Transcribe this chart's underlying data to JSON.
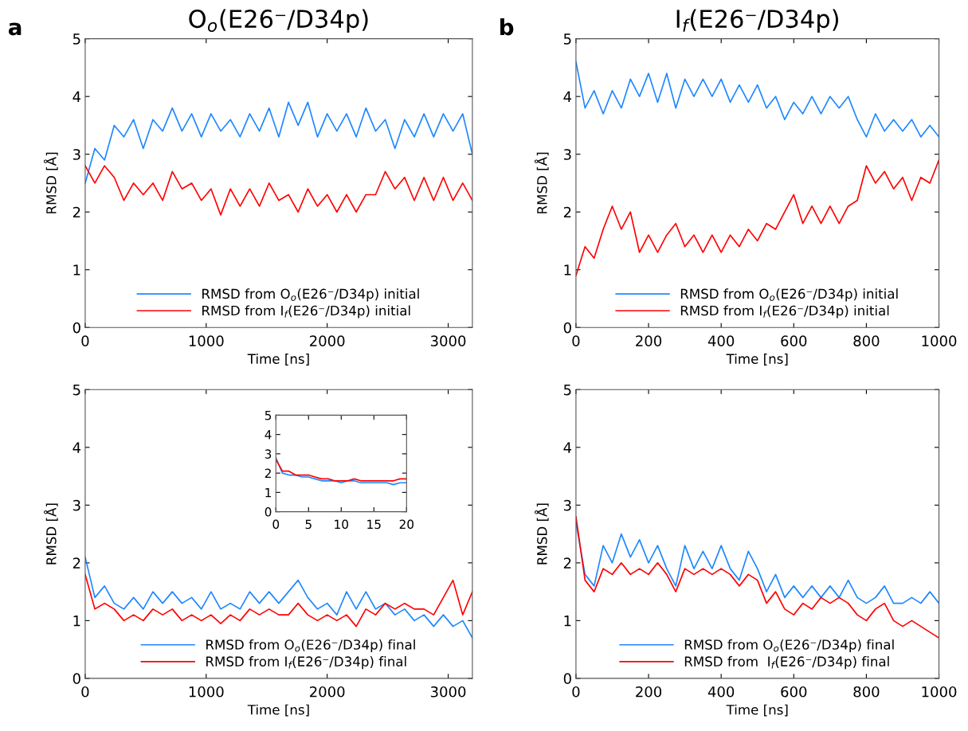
{
  "chart_data": [
    {
      "type": "line",
      "title": "O$_{o}$(E26⁻/D34p)",
      "xlabel": "Time [ns]",
      "ylabel": "RMSD [Å]",
      "annotations": [
        "a"
      ],
      "xlim": [
        0,
        3200
      ],
      "xticks": [
        0,
        1000,
        2000,
        3000
      ],
      "ylim": [
        0,
        5
      ],
      "yticks": [
        0,
        1,
        2,
        3,
        4,
        5
      ],
      "legend": "bottom",
      "grid": false,
      "x": [
        0,
        80,
        160,
        240,
        320,
        400,
        480,
        560,
        640,
        720,
        800,
        880,
        960,
        1040,
        1120,
        1200,
        1280,
        1360,
        1440,
        1520,
        1600,
        1680,
        1760,
        1840,
        1920,
        2000,
        2080,
        2160,
        2240,
        2320,
        2400,
        2480,
        2560,
        2640,
        2720,
        2800,
        2880,
        2960,
        3040,
        3120,
        3200
      ],
      "series": [
        {
          "name": "RMSD from O$_{o}$(E26⁻/D34p) initial",
          "color": "#1e88ff",
          "values": [
            2.5,
            3.1,
            2.9,
            3.5,
            3.3,
            3.6,
            3.1,
            3.6,
            3.4,
            3.8,
            3.4,
            3.7,
            3.3,
            3.7,
            3.4,
            3.6,
            3.3,
            3.7,
            3.4,
            3.8,
            3.3,
            3.9,
            3.5,
            3.9,
            3.3,
            3.7,
            3.4,
            3.7,
            3.3,
            3.8,
            3.4,
            3.6,
            3.1,
            3.6,
            3.3,
            3.7,
            3.3,
            3.7,
            3.4,
            3.7,
            3.0
          ]
        },
        {
          "name": "RMSD from I$_{f}$(E26⁻/D34p) initial",
          "color": "#ff0000",
          "values": [
            2.8,
            2.5,
            2.8,
            2.6,
            2.2,
            2.5,
            2.3,
            2.5,
            2.2,
            2.7,
            2.4,
            2.5,
            2.2,
            2.4,
            1.95,
            2.4,
            2.1,
            2.4,
            2.1,
            2.5,
            2.2,
            2.3,
            2.0,
            2.4,
            2.1,
            2.3,
            2.0,
            2.3,
            2.0,
            2.3,
            2.3,
            2.7,
            2.4,
            2.6,
            2.2,
            2.6,
            2.2,
            2.6,
            2.2,
            2.5,
            2.2
          ]
        }
      ]
    },
    {
      "type": "line",
      "title": "I$_{f}$(E26⁻/D34p)",
      "xlabel": "Time [ns]",
      "ylabel": "RMSD [Å]",
      "annotations": [
        "b"
      ],
      "xlim": [
        0,
        1000
      ],
      "xticks": [
        0,
        200,
        400,
        600,
        800,
        1000
      ],
      "ylim": [
        0,
        5
      ],
      "yticks": [
        0,
        1,
        2,
        3,
        4,
        5
      ],
      "legend": "bottom",
      "grid": false,
      "x": [
        0,
        25,
        50,
        75,
        100,
        125,
        150,
        175,
        200,
        225,
        250,
        275,
        300,
        325,
        350,
        375,
        400,
        425,
        450,
        475,
        500,
        525,
        550,
        575,
        600,
        625,
        650,
        675,
        700,
        725,
        750,
        775,
        800,
        825,
        850,
        875,
        900,
        925,
        950,
        975,
        1000
      ],
      "series": [
        {
          "name": "RMSD from O$_{o}$(E26⁻/D34p) initial",
          "color": "#1e88ff",
          "values": [
            4.6,
            3.8,
            4.1,
            3.7,
            4.1,
            3.8,
            4.3,
            4.0,
            4.4,
            3.9,
            4.4,
            3.8,
            4.3,
            4.0,
            4.3,
            4.0,
            4.3,
            3.9,
            4.2,
            3.9,
            4.2,
            3.8,
            4.0,
            3.6,
            3.9,
            3.7,
            4.0,
            3.7,
            4.0,
            3.8,
            4.0,
            3.6,
            3.3,
            3.7,
            3.4,
            3.6,
            3.4,
            3.6,
            3.3,
            3.5,
            3.3
          ]
        },
        {
          "name": "RMSD from I$_{f}$(E26⁻/D34p) initial",
          "color": "#ff0000",
          "values": [
            0.9,
            1.4,
            1.2,
            1.7,
            2.1,
            1.7,
            2.0,
            1.3,
            1.6,
            1.3,
            1.6,
            1.8,
            1.4,
            1.6,
            1.3,
            1.6,
            1.3,
            1.6,
            1.4,
            1.7,
            1.5,
            1.8,
            1.7,
            2.0,
            2.3,
            1.8,
            2.1,
            1.8,
            2.1,
            1.8,
            2.1,
            2.2,
            2.8,
            2.5,
            2.7,
            2.4,
            2.6,
            2.2,
            2.6,
            2.5,
            2.9
          ]
        }
      ]
    },
    {
      "type": "line",
      "xlabel": "Time [ns]",
      "ylabel": "RMSD [Å]",
      "xlim": [
        0,
        3200
      ],
      "xticks": [
        0,
        1000,
        2000,
        3000
      ],
      "ylim": [
        0,
        5
      ],
      "yticks": [
        0,
        1,
        2,
        3,
        4,
        5
      ],
      "legend": "bottom",
      "grid": false,
      "x": [
        0,
        80,
        160,
        240,
        320,
        400,
        480,
        560,
        640,
        720,
        800,
        880,
        960,
        1040,
        1120,
        1200,
        1280,
        1360,
        1440,
        1520,
        1600,
        1680,
        1760,
        1840,
        1920,
        2000,
        2080,
        2160,
        2240,
        2320,
        2400,
        2480,
        2560,
        2640,
        2720,
        2800,
        2880,
        2960,
        3040,
        3120,
        3200
      ],
      "series": [
        {
          "name": "RMSD from O$_{o}$(E26⁻/D34p) final",
          "color": "#1e88ff",
          "values": [
            2.1,
            1.4,
            1.6,
            1.3,
            1.2,
            1.4,
            1.2,
            1.5,
            1.3,
            1.5,
            1.3,
            1.4,
            1.2,
            1.5,
            1.2,
            1.3,
            1.2,
            1.5,
            1.3,
            1.5,
            1.3,
            1.5,
            1.7,
            1.4,
            1.2,
            1.3,
            1.1,
            1.5,
            1.2,
            1.5,
            1.2,
            1.3,
            1.1,
            1.2,
            1.0,
            1.1,
            0.9,
            1.1,
            0.9,
            1.0,
            0.7
          ]
        },
        {
          "name": "RMSD from I$_{f}$(E26⁻/D34p) final",
          "color": "#ff0000",
          "values": [
            1.8,
            1.2,
            1.3,
            1.2,
            1.0,
            1.1,
            1.0,
            1.2,
            1.1,
            1.2,
            1.0,
            1.1,
            1.0,
            1.1,
            0.95,
            1.1,
            1.0,
            1.2,
            1.1,
            1.2,
            1.1,
            1.1,
            1.3,
            1.1,
            1.0,
            1.1,
            1.0,
            1.1,
            0.9,
            1.2,
            1.1,
            1.3,
            1.2,
            1.3,
            1.2,
            1.2,
            1.1,
            1.4,
            1.7,
            1.1,
            1.5
          ]
        }
      ]
    },
    {
      "type": "line",
      "xlim": [
        0,
        20
      ],
      "xticks": [
        0,
        5,
        10,
        15,
        20
      ],
      "ylim": [
        0,
        5
      ],
      "yticks": [
        0,
        1,
        2,
        3,
        4,
        5
      ],
      "grid": false,
      "x": [
        0,
        1,
        2,
        3,
        4,
        5,
        6,
        7,
        8,
        9,
        10,
        11,
        12,
        13,
        14,
        15,
        16,
        17,
        18,
        19,
        20
      ],
      "series": [
        {
          "color": "#1e88ff",
          "values": [
            2.8,
            2.0,
            1.9,
            1.9,
            1.8,
            1.8,
            1.7,
            1.6,
            1.6,
            1.6,
            1.5,
            1.6,
            1.6,
            1.5,
            1.5,
            1.5,
            1.5,
            1.5,
            1.4,
            1.5,
            1.5
          ]
        },
        {
          "color": "#ff0000",
          "values": [
            2.7,
            2.1,
            2.1,
            1.9,
            1.9,
            1.9,
            1.8,
            1.7,
            1.7,
            1.6,
            1.6,
            1.6,
            1.7,
            1.6,
            1.6,
            1.6,
            1.6,
            1.6,
            1.6,
            1.7,
            1.7
          ]
        }
      ]
    },
    {
      "type": "line",
      "xlabel": "Time [ns]",
      "ylabel": "RMSD [Å]",
      "xlim": [
        0,
        1000
      ],
      "xticks": [
        0,
        200,
        400,
        600,
        800,
        1000
      ],
      "ylim": [
        0,
        5
      ],
      "yticks": [
        0,
        1,
        2,
        3,
        4,
        5
      ],
      "legend": "bottom",
      "grid": false,
      "x": [
        0,
        25,
        50,
        75,
        100,
        125,
        150,
        175,
        200,
        225,
        250,
        275,
        300,
        325,
        350,
        375,
        400,
        425,
        450,
        475,
        500,
        525,
        550,
        575,
        600,
        625,
        650,
        675,
        700,
        725,
        750,
        775,
        800,
        825,
        850,
        875,
        900,
        925,
        950,
        975,
        1000
      ],
      "series": [
        {
          "name": "RMSD from O$_{o}$(E26⁻/D34p) final",
          "color": "#1e88ff",
          "values": [
            2.7,
            1.8,
            1.6,
            2.3,
            2.0,
            2.5,
            2.1,
            2.4,
            2.0,
            2.3,
            1.9,
            1.6,
            2.3,
            1.9,
            2.2,
            1.9,
            2.3,
            1.9,
            1.7,
            2.2,
            1.9,
            1.5,
            1.8,
            1.4,
            1.6,
            1.4,
            1.6,
            1.4,
            1.6,
            1.4,
            1.7,
            1.4,
            1.3,
            1.4,
            1.6,
            1.3,
            1.3,
            1.4,
            1.3,
            1.5,
            1.3
          ]
        },
        {
          "name": "RMSD from  I$_{f}$(E26⁻/D34p) final",
          "color": "#ff0000",
          "values": [
            2.8,
            1.7,
            1.5,
            1.9,
            1.8,
            2.0,
            1.8,
            1.9,
            1.8,
            2.0,
            1.8,
            1.5,
            1.9,
            1.8,
            1.9,
            1.8,
            1.9,
            1.8,
            1.6,
            1.8,
            1.7,
            1.3,
            1.5,
            1.2,
            1.1,
            1.3,
            1.2,
            1.4,
            1.3,
            1.4,
            1.3,
            1.1,
            1.0,
            1.2,
            1.3,
            1.0,
            0.9,
            1.0,
            0.9,
            0.8,
            0.7
          ]
        }
      ]
    }
  ]
}
